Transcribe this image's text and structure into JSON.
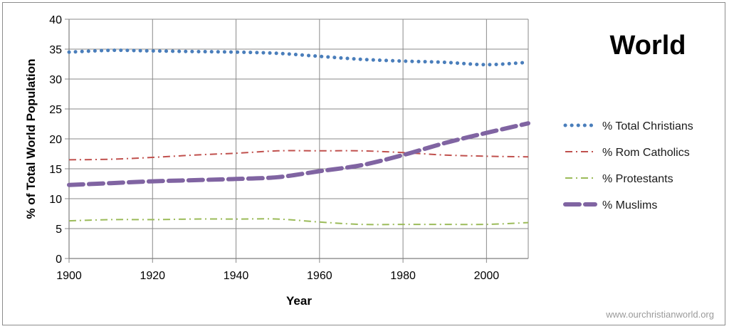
{
  "chart_data": {
    "type": "line",
    "title": "World",
    "xlabel": "Year",
    "ylabel": "% of Total World Population",
    "xlim": [
      1900,
      2010
    ],
    "ylim": [
      0,
      40
    ],
    "x_ticks": [
      1900,
      1920,
      1940,
      1960,
      1980,
      2000
    ],
    "y_ticks": [
      0,
      5,
      10,
      15,
      20,
      25,
      30,
      35,
      40
    ],
    "grid": "both",
    "legend_position": "right",
    "series": [
      {
        "name": "% Total Christians",
        "color": "#4a7ebb",
        "style": "dotted",
        "x": [
          1900,
          1910,
          1920,
          1930,
          1940,
          1950,
          1960,
          1970,
          1980,
          1990,
          2000,
          2010
        ],
        "values": [
          34.5,
          34.8,
          34.7,
          34.6,
          34.5,
          34.3,
          33.8,
          33.3,
          33.0,
          32.8,
          32.4,
          32.8
        ]
      },
      {
        "name": "% Rom Catholics",
        "color": "#c0504d",
        "style": "dashdot",
        "x": [
          1900,
          1910,
          1920,
          1930,
          1940,
          1950,
          1960,
          1970,
          1980,
          1990,
          2000,
          2010
        ],
        "values": [
          16.5,
          16.6,
          16.9,
          17.3,
          17.6,
          18.0,
          18.0,
          18.0,
          17.7,
          17.3,
          17.1,
          17.0
        ]
      },
      {
        "name": "% Protestants",
        "color": "#9bbb59",
        "style": "dashdot",
        "x": [
          1900,
          1910,
          1920,
          1930,
          1940,
          1950,
          1960,
          1970,
          1980,
          1990,
          2000,
          2010
        ],
        "values": [
          6.3,
          6.5,
          6.5,
          6.6,
          6.6,
          6.6,
          6.1,
          5.7,
          5.7,
          5.7,
          5.7,
          6.0
        ]
      },
      {
        "name": "% Muslims",
        "color": "#8064a2",
        "style": "dashed",
        "x": [
          1900,
          1910,
          1920,
          1930,
          1940,
          1950,
          1960,
          1970,
          1980,
          1990,
          2000,
          2010
        ],
        "values": [
          12.3,
          12.6,
          12.9,
          13.1,
          13.3,
          13.6,
          14.6,
          15.6,
          17.3,
          19.3,
          21.0,
          22.6
        ]
      }
    ]
  },
  "watermark": "www.ourchristianworld.org"
}
